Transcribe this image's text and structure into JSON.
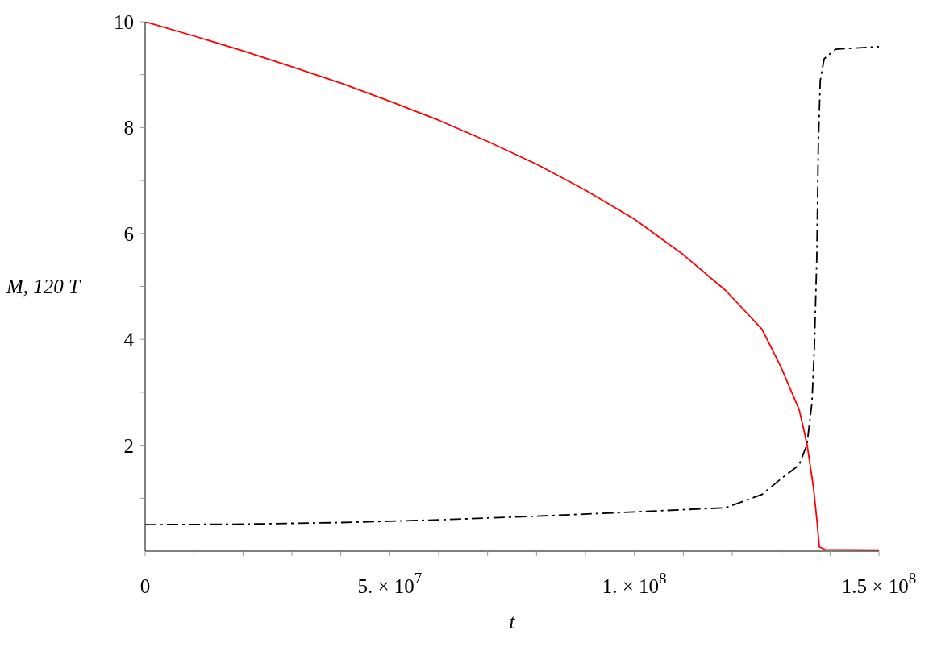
{
  "chart_data": {
    "type": "line",
    "xlabel": "t",
    "ylabel": "M, 120 T",
    "xlim": [
      0,
      150000000
    ],
    "ylim": [
      0,
      10
    ],
    "xticks": [
      0,
      {
        "value": 10000000,
        "label": null
      },
      {
        "value": 20000000,
        "label": null
      },
      {
        "value": 30000000,
        "label": null
      },
      {
        "value": 40000000,
        "label": null
      },
      {
        "value": 50000000,
        "label": "5. × 10$^{7}$"
      },
      {
        "value": 60000000,
        "label": null
      },
      {
        "value": 70000000,
        "label": null
      },
      {
        "value": 80000000,
        "label": null
      },
      {
        "value": 90000000,
        "label": null
      },
      {
        "value": 100000000,
        "label": "1. × 10$^{8}$"
      },
      {
        "value": 110000000,
        "label": null
      },
      {
        "value": 120000000,
        "label": null
      },
      {
        "value": 130000000,
        "label": null
      },
      {
        "value": 140000000,
        "label": null
      },
      {
        "value": 150000000,
        "label": "1.5 × 10$^{8}$"
      }
    ],
    "yticks": [
      {
        "value": 1,
        "label": null
      },
      2,
      {
        "value": 3,
        "label": null
      },
      4,
      {
        "value": 5,
        "label": null
      },
      6,
      {
        "value": 7,
        "label": null
      },
      8,
      {
        "value": 9,
        "label": null
      },
      10
    ],
    "grid": false,
    "legend": false,
    "marker": "none",
    "series": [
      {
        "color": "#ff0000",
        "line_style": "solid",
        "x": [
          0,
          10000000,
          20000000,
          30000000,
          40000000,
          50000000,
          60000000,
          70000000,
          80000000,
          90000000,
          100000000,
          110000000,
          118700000,
          126100000,
          129900000,
          133700000,
          135300000,
          136600000,
          137300000,
          137800000,
          139000000,
          150000000
        ],
        "values": [
          10,
          9.73,
          9.45,
          9.15,
          8.84,
          8.5,
          8.14,
          7.74,
          7.31,
          6.82,
          6.27,
          5.6,
          4.92,
          4.19,
          3.49,
          2.67,
          2.02,
          1.21,
          0.6,
          0.08,
          0.03,
          0.02
        ]
      },
      {
        "color": "#000000",
        "line_style": "dashed",
        "x": [
          0,
          20000000,
          40000000,
          60000000,
          80000000,
          100000000,
          118700000,
          126100000,
          129900000,
          133700000,
          135300000,
          136300000,
          136800000,
          137300000,
          137600000,
          138000000,
          138800000,
          141100000,
          150000000
        ],
        "values": [
          0.5,
          0.51,
          0.54,
          0.59,
          0.66,
          0.74,
          0.82,
          1.07,
          1.36,
          1.63,
          2.02,
          2.8,
          3.84,
          5.57,
          7.64,
          8.89,
          9.3,
          9.48,
          9.53
        ]
      }
    ]
  }
}
